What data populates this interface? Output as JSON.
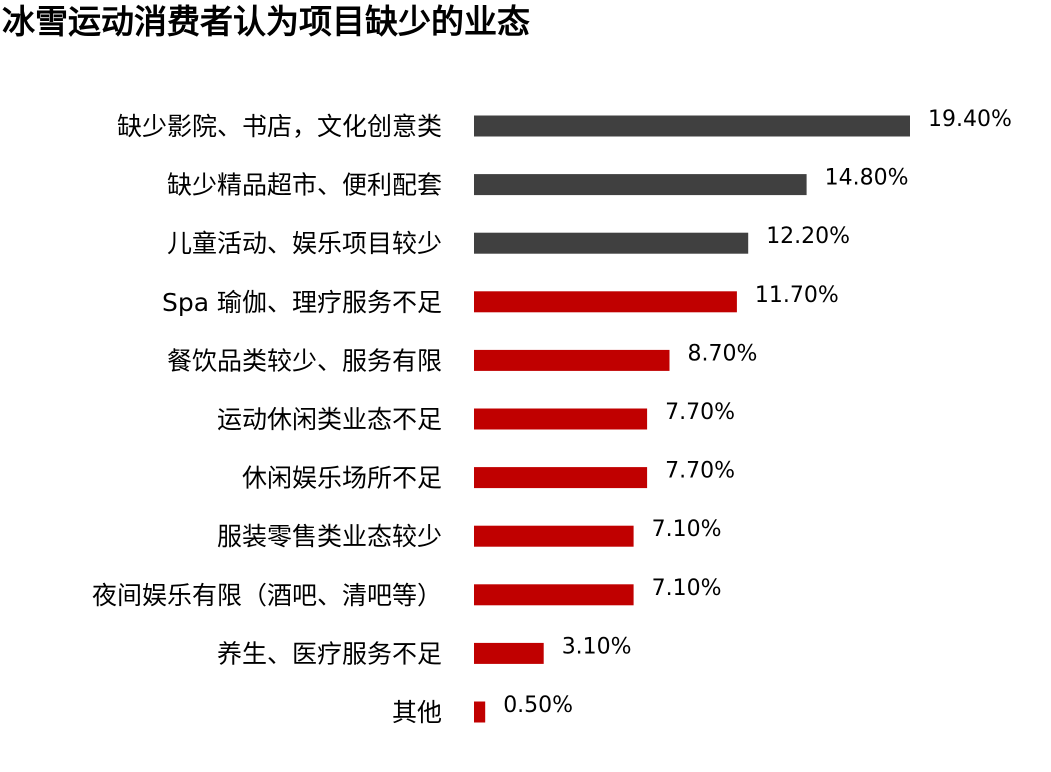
{
  "title": "冰雪运动消费者认为项目缺少的业态",
  "chart_data": {
    "type": "bar",
    "orientation": "horizontal",
    "title": "冰雪运动消费者认为项目缺少的业态",
    "xlabel": "",
    "ylabel": "",
    "xlim": [
      0,
      19.4
    ],
    "grid": false,
    "legend": "none",
    "categories": [
      "缺少影院、书店，文化创意类",
      "缺少精品超市、便利配套",
      "儿童活动、娱乐项目较少",
      "Spa  瑜伽、理疗服务不足",
      "餐饮品类较少、服务有限",
      "运动休闲类业态不足",
      "休闲娱乐场所不足",
      "服装零售类业态较少",
      "夜间娱乐有限（酒吧、清吧等）",
      "养生、医疗服务不足",
      "其他"
    ],
    "values": [
      19.4,
      14.8,
      12.2,
      11.7,
      8.7,
      7.7,
      7.7,
      7.1,
      7.1,
      3.1,
      0.5
    ],
    "value_labels": [
      "19.40%",
      "14.80%",
      "12.20%",
      "11.70%",
      "8.70%",
      "7.70%",
      "7.70%",
      "7.10%",
      "7.10%",
      "3.10%",
      "0.50%"
    ],
    "colors": [
      "#404040",
      "#404040",
      "#404040",
      "#c00000",
      "#c00000",
      "#c00000",
      "#c00000",
      "#c00000",
      "#c00000",
      "#c00000",
      "#c00000"
    ]
  }
}
